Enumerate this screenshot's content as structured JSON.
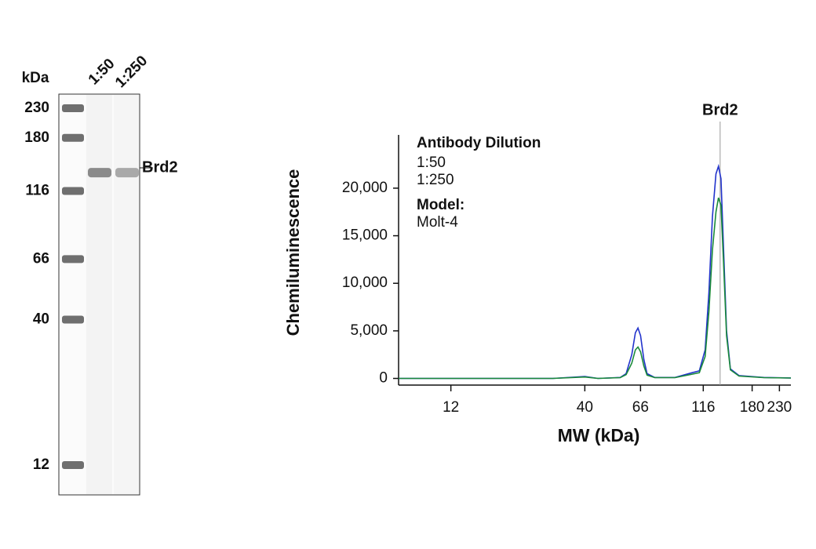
{
  "gel": {
    "y_label": "kDa",
    "lanes": [
      "1:50",
      "1:250"
    ],
    "markers": [
      230,
      180,
      116,
      66,
      40,
      12
    ],
    "band_label": "Brd2",
    "band_kda": 135
  },
  "chart_data": {
    "type": "line",
    "ylabel": "Chemiluminescence",
    "xlabel": "MW (kDa)",
    "legend_title": "Antibody Dilution",
    "model_label": "Model:",
    "model": "Molt-4",
    "annotation": {
      "text": "Brd2",
      "x": 135
    },
    "x_scale": "log",
    "xlim": [
      7.5,
      255
    ],
    "xticks": [
      12,
      40,
      66,
      116,
      180,
      230
    ],
    "ylim": [
      -700,
      25600
    ],
    "yticks": [
      0,
      {
        "value": 5000,
        "label": "5,000"
      },
      {
        "value": 10000,
        "label": "10,000"
      },
      {
        "value": 15000,
        "label": "15,000"
      },
      {
        "value": 20000,
        "label": "20,000"
      }
    ],
    "x": [
      7.5,
      12,
      30,
      40,
      45,
      55,
      58,
      61,
      63,
      64.5,
      66,
      68,
      70,
      75,
      90,
      105,
      112,
      118,
      122,
      126,
      130,
      133,
      136,
      139,
      143,
      148,
      160,
      200,
      255
    ],
    "series": [
      {
        "name": "1:50",
        "color": "#2233cc",
        "values": [
          0,
          0,
          0,
          200,
          0,
          100,
          500,
          2500,
          4800,
          5300,
          4500,
          2000,
          500,
          100,
          100,
          600,
          800,
          3000,
          9000,
          17000,
          21500,
          22300,
          21000,
          14000,
          5000,
          1000,
          300,
          100,
          50
        ]
      },
      {
        "name": "1:250",
        "color": "#1a8a3a",
        "values": [
          0,
          0,
          0,
          150,
          0,
          80,
          400,
          1600,
          3000,
          3300,
          2800,
          1300,
          350,
          80,
          80,
          450,
          600,
          2300,
          7000,
          13500,
          17500,
          19000,
          18200,
          12500,
          4500,
          900,
          250,
          80,
          40
        ]
      }
    ]
  }
}
